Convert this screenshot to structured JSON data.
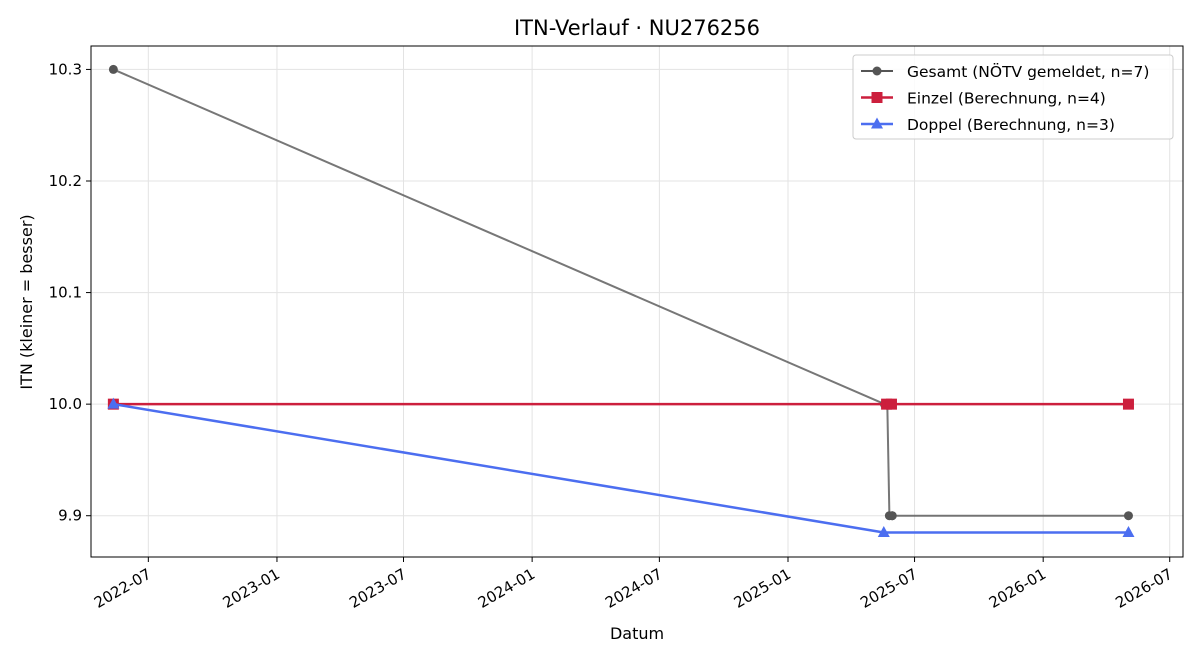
{
  "chart_data": {
    "type": "line",
    "title": "ITN-Verlauf · NU276256",
    "xlabel": "Datum",
    "ylabel": "ITN  (kleiner = besser)",
    "x_type": "date",
    "xlim": [
      "2022-04-10",
      "2026-07-20"
    ],
    "ylim": [
      9.863,
      10.321
    ],
    "x_ticks": [
      {
        "date": "2022-07-01",
        "label": "2022-07"
      },
      {
        "date": "2023-01-01",
        "label": "2023-01"
      },
      {
        "date": "2023-07-01",
        "label": "2023-07"
      },
      {
        "date": "2024-01-01",
        "label": "2024-01"
      },
      {
        "date": "2024-07-01",
        "label": "2024-07"
      },
      {
        "date": "2025-01-01",
        "label": "2025-01"
      },
      {
        "date": "2025-07-01",
        "label": "2025-07"
      },
      {
        "date": "2026-01-01",
        "label": "2026-01"
      },
      {
        "date": "2026-07-01",
        "label": "2026-07"
      }
    ],
    "y_ticks": [
      {
        "value": 9.9,
        "label": "9.9"
      },
      {
        "value": 10.0,
        "label": "10.0"
      },
      {
        "value": 10.1,
        "label": "10.1"
      },
      {
        "value": 10.2,
        "label": "10.2"
      },
      {
        "value": 10.3,
        "label": "10.3"
      }
    ],
    "grid": true,
    "legend_position": "top-right",
    "series": [
      {
        "name": "Gesamt (NÖTV gemeldet, n=7)",
        "color": "#555555",
        "marker": "circle",
        "points": [
          {
            "x": "2022-05-12",
            "y": 10.3
          },
          {
            "x": "2025-05-19",
            "y": 10.0
          },
          {
            "x": "2025-05-23",
            "y": 10.0
          },
          {
            "x": "2025-05-26",
            "y": 9.9
          },
          {
            "x": "2025-05-30",
            "y": 9.9
          },
          {
            "x": "2025-05-30",
            "y": 9.9
          },
          {
            "x": "2026-05-03",
            "y": 9.9
          }
        ]
      },
      {
        "name": "Einzel (Berechnung, n=4)",
        "color": "#cc1f3d",
        "marker": "square",
        "points": [
          {
            "x": "2022-05-12",
            "y": 10.0
          },
          {
            "x": "2025-05-22",
            "y": 10.0
          },
          {
            "x": "2025-05-29",
            "y": 10.0
          },
          {
            "x": "2026-05-03",
            "y": 10.0
          }
        ]
      },
      {
        "name": "Doppel (Berechnung, n=3)",
        "color": "#4c6ef0",
        "marker": "triangle",
        "points": [
          {
            "x": "2022-05-12",
            "y": 10.0
          },
          {
            "x": "2025-05-18",
            "y": 9.885
          },
          {
            "x": "2026-05-03",
            "y": 9.885
          }
        ]
      }
    ]
  }
}
